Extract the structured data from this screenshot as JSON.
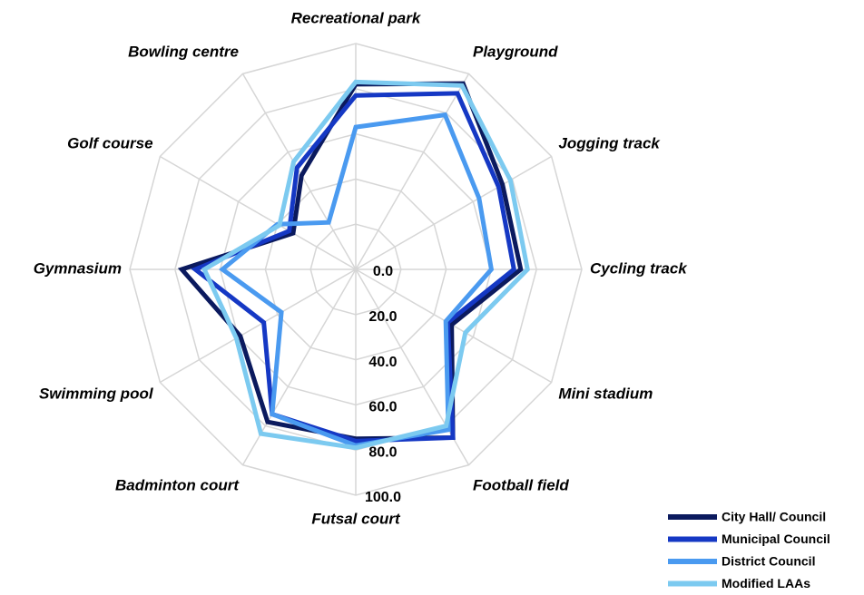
{
  "chart_data": {
    "type": "radar",
    "categories": [
      "Recreational park",
      "Playground",
      "Jogging track",
      "Cycling track",
      "Mini stadium",
      "Football field",
      "Futsal court",
      "Badminton court",
      "Swimming pool",
      "Gymnasium",
      "Golf course",
      "Bowling centre"
    ],
    "series": [
      {
        "name": "City Hall/ Council",
        "color": "#0b1a5e",
        "values": [
          82,
          95,
          75,
          73,
          49,
          86,
          75,
          78,
          59,
          77,
          32,
          48
        ]
      },
      {
        "name": "Municipal Council",
        "color": "#1538c4",
        "values": [
          77,
          90,
          73,
          70,
          47,
          86,
          76,
          74,
          47,
          71,
          34,
          52
        ]
      },
      {
        "name": "District Council",
        "color": "#4a9af0",
        "values": [
          63,
          79,
          63,
          60,
          46,
          82,
          78,
          74,
          38,
          59,
          40,
          24
        ]
      },
      {
        "name": "Modified LAAs",
        "color": "#7ccaf0",
        "values": [
          83,
          94,
          79,
          76,
          56,
          80,
          79,
          84,
          61,
          67,
          39,
          55
        ]
      }
    ],
    "rlim": [
      0,
      100
    ],
    "rticks": [
      {
        "value": 0,
        "label": "0.0"
      },
      {
        "value": 20,
        "label": "20.0"
      },
      {
        "value": 40,
        "label": "40.0"
      },
      {
        "value": 60,
        "label": "60.0"
      },
      {
        "value": 80,
        "label": "80.0"
      },
      {
        "value": 100,
        "label": "100.0"
      }
    ],
    "grid": true,
    "legend": "lower right"
  }
}
